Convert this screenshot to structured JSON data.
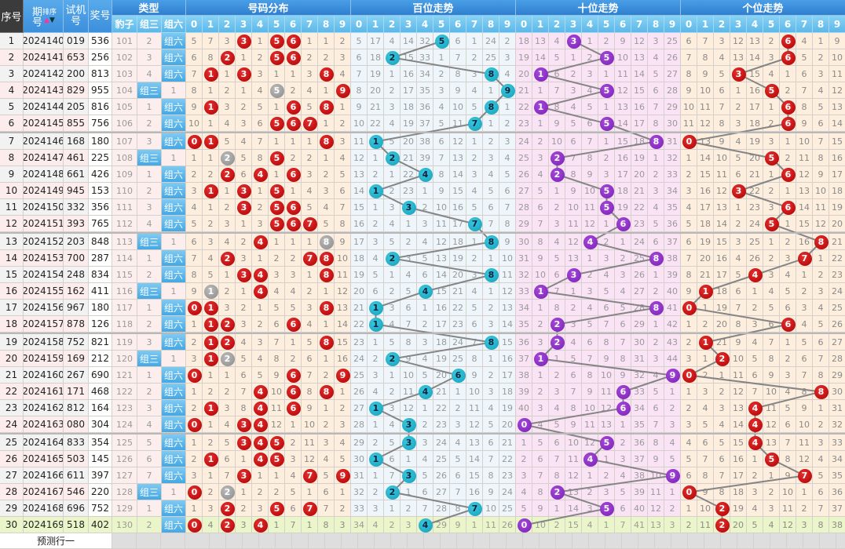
{
  "header": {
    "seq": "序号",
    "period": "期号",
    "sort": "排序",
    "test": "试机号",
    "prize": "奖号",
    "type_group": "类型",
    "types": [
      "豹子",
      "组三",
      "组六"
    ],
    "dist": "号码分布",
    "hundreds": "百位走势",
    "tens": "十位走势",
    "units": "个位走势",
    "digits": [
      "0",
      "1",
      "2",
      "3",
      "4",
      "5",
      "6",
      "7",
      "8",
      "9"
    ]
  },
  "rows": [
    {
      "seq": "1",
      "period": "2024140",
      "test": "019",
      "prize": "536"
    },
    {
      "seq": "2",
      "period": "2024141",
      "test": "653",
      "prize": "256"
    },
    {
      "seq": "3",
      "period": "2024142",
      "test": "200",
      "prize": "813"
    },
    {
      "seq": "4",
      "period": "2024143",
      "test": "829",
      "prize": "955"
    },
    {
      "seq": "5",
      "period": "2024144",
      "test": "205",
      "prize": "816"
    },
    {
      "seq": "6",
      "period": "2024145",
      "test": "855",
      "prize": "756"
    },
    {
      "seq": "7",
      "period": "2024146",
      "test": "168",
      "prize": "180"
    },
    {
      "seq": "8",
      "period": "2024147",
      "test": "461",
      "prize": "225"
    },
    {
      "seq": "9",
      "period": "2024148",
      "test": "661",
      "prize": "426"
    },
    {
      "seq": "10",
      "period": "2024149",
      "test": "945",
      "prize": "153"
    },
    {
      "seq": "11",
      "period": "2024150",
      "test": "332",
      "prize": "356"
    },
    {
      "seq": "12",
      "period": "2024151",
      "test": "393",
      "prize": "765"
    },
    {
      "seq": "13",
      "period": "2024152",
      "test": "203",
      "prize": "848"
    },
    {
      "seq": "14",
      "period": "2024153",
      "test": "700",
      "prize": "287"
    },
    {
      "seq": "15",
      "period": "2024154",
      "test": "248",
      "prize": "834"
    },
    {
      "seq": "16",
      "period": "2024155",
      "test": "162",
      "prize": "411"
    },
    {
      "seq": "17",
      "period": "2024156",
      "test": "967",
      "prize": "180"
    },
    {
      "seq": "18",
      "period": "2024157",
      "test": "878",
      "prize": "126"
    },
    {
      "seq": "19",
      "period": "2024158",
      "test": "752",
      "prize": "821"
    },
    {
      "seq": "20",
      "period": "2024159",
      "test": "169",
      "prize": "212"
    },
    {
      "seq": "21",
      "period": "2024160",
      "test": "267",
      "prize": "690"
    },
    {
      "seq": "22",
      "period": "2024161",
      "test": "171",
      "prize": "468"
    },
    {
      "seq": "23",
      "period": "2024162",
      "test": "812",
      "prize": "164"
    },
    {
      "seq": "24",
      "period": "2024163",
      "test": "080",
      "prize": "304"
    },
    {
      "seq": "25",
      "period": "2024164",
      "test": "833",
      "prize": "354"
    },
    {
      "seq": "26",
      "period": "2024165",
      "test": "503",
      "prize": "145"
    },
    {
      "seq": "27",
      "period": "2024166",
      "test": "611",
      "prize": "397"
    },
    {
      "seq": "28",
      "period": "2024167",
      "test": "546",
      "prize": "220"
    },
    {
      "seq": "29",
      "period": "2024168",
      "test": "696",
      "prize": "752"
    },
    {
      "seq": "30",
      "period": "2024169",
      "test": "518",
      "prize": "402"
    }
  ],
  "first_row_missing": {
    "baozi": 101,
    "zusan": 2,
    "dist": [
      5,
      7,
      3,
      null,
      1,
      null,
      null,
      1,
      1,
      2
    ],
    "hundreds": [
      5,
      17,
      4,
      14,
      32,
      null,
      6,
      1,
      24,
      2
    ],
    "tens": [
      18,
      13,
      4,
      null,
      1,
      2,
      9,
      12,
      3,
      25
    ],
    "units": [
      6,
      7,
      3,
      12,
      13,
      2,
      null,
      4,
      1,
      9
    ]
  },
  "footer": {
    "forecast_label": "预测行一"
  },
  "colors": {
    "dist_bg": "#fdeedd",
    "hundreds_bg": "#eef6fb",
    "tens_bg": "#fbe3f6",
    "units_bg": "#fdeedd",
    "latest_row_bg": "#eaf6c9",
    "ball_red": "#c80000",
    "ball_gray": "#999999",
    "ball_teal": "#1ab0c8",
    "ball_purple": "#8a2bc8",
    "trend_line": "#858585"
  }
}
